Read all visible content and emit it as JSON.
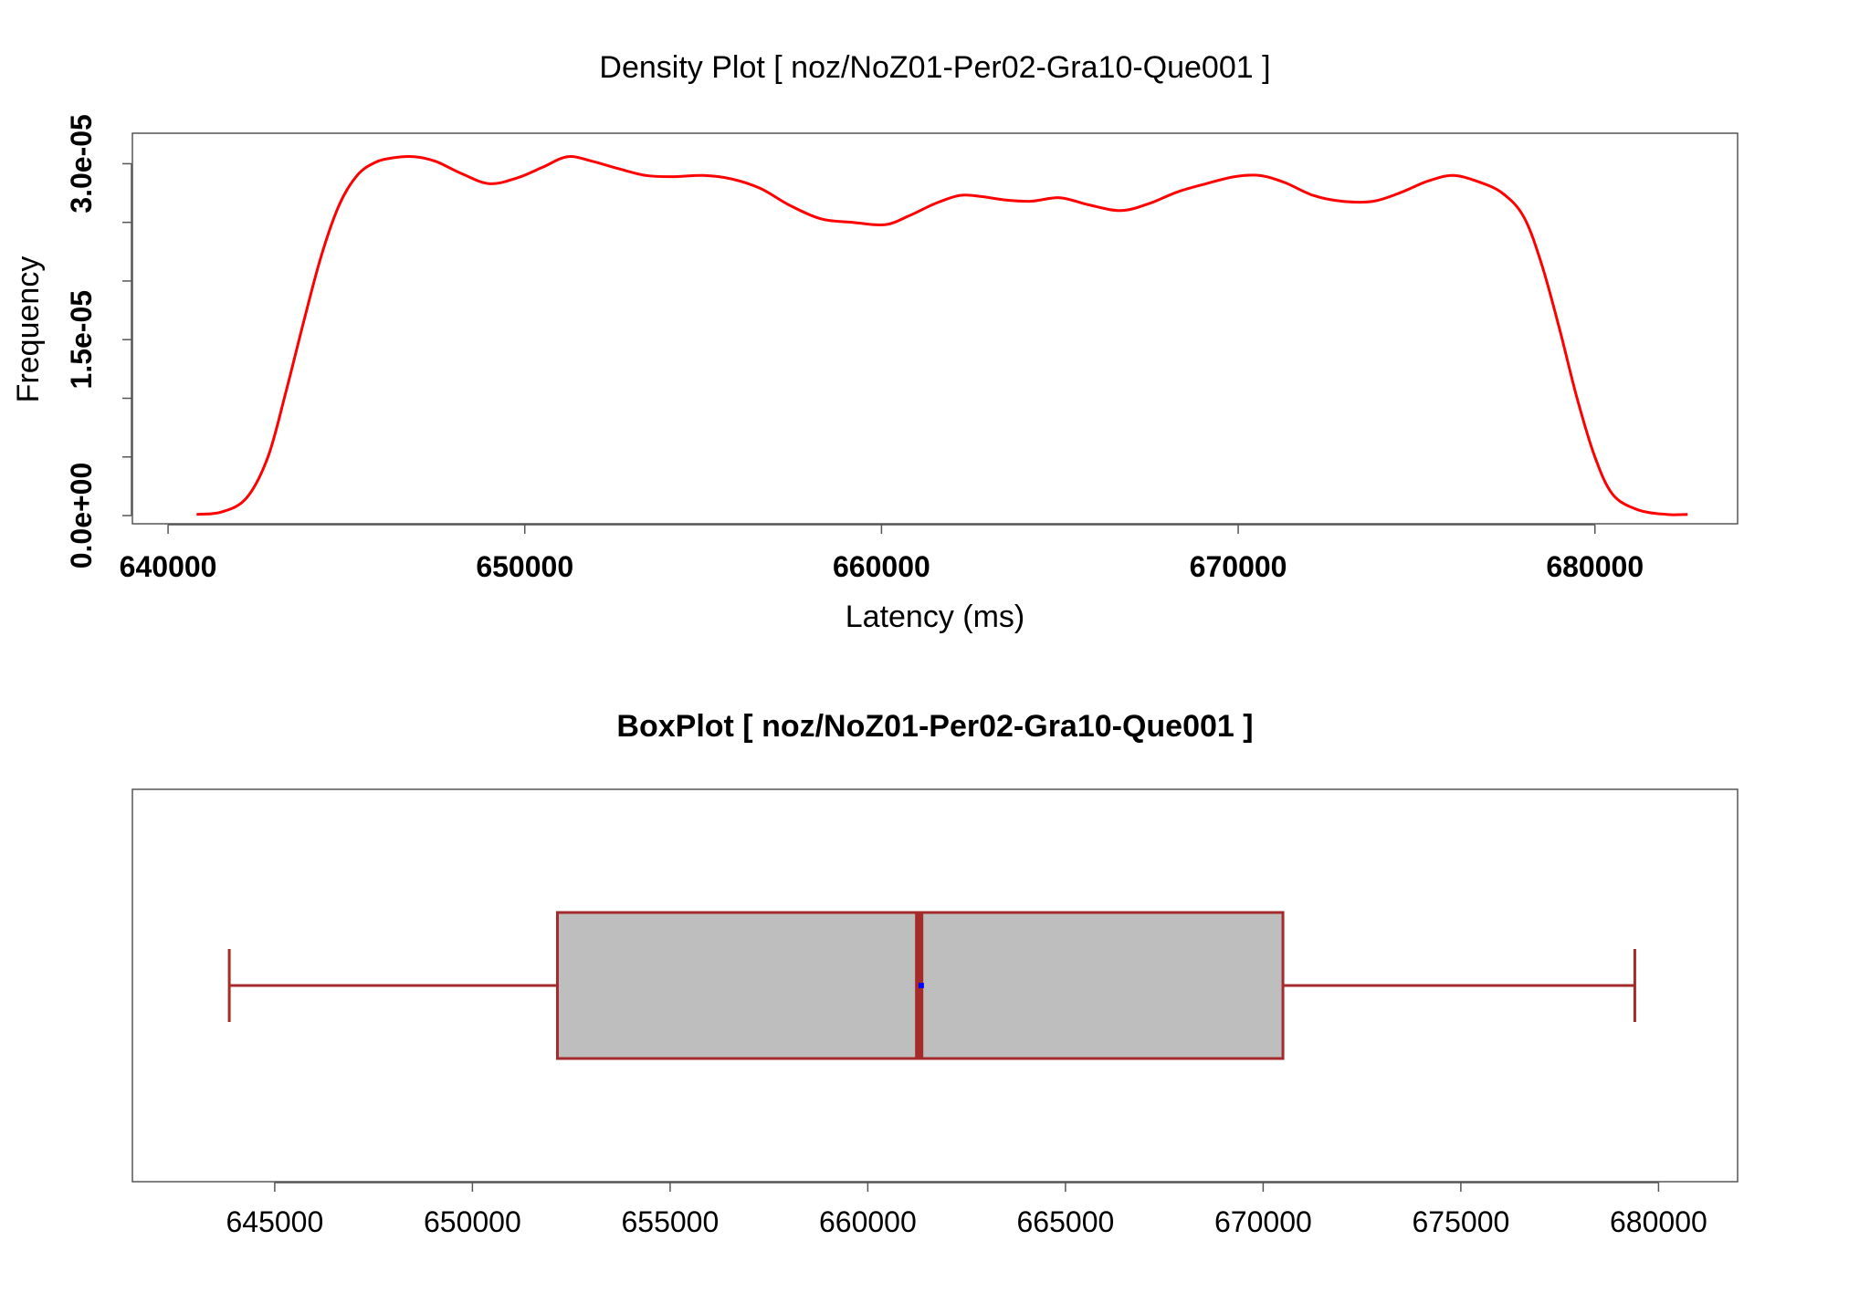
{
  "colors": {
    "density_line": "#ff0000",
    "box_border": "#a52a2a",
    "box_fill": "#bebebe",
    "mean_marker": "#0000ff",
    "frame": "#555555"
  },
  "chart_data": [
    {
      "type": "line",
      "title": "Density Plot [ noz/NoZ01-Per02-Gra10-Que001 ]",
      "xlabel": "Latency (ms)",
      "ylabel": "Frequency",
      "xlim": [
        639000,
        684000
      ],
      "ylim": [
        -7e-07,
        3.26e-05
      ],
      "x_ticks": [
        640000,
        650000,
        660000,
        670000,
        680000
      ],
      "x_tick_labels": [
        "640000",
        "650000",
        "660000",
        "670000",
        "680000"
      ],
      "y_ticks": [
        0,
        5e-06,
        1e-05,
        1.5e-05,
        2e-05,
        2.5e-05,
        3e-05
      ],
      "y_tick_labels": [
        {
          "value": 0,
          "label": "0.0e+00"
        },
        {
          "value": 1.5e-05,
          "label": "1.5e-05"
        },
        {
          "value": 3e-05,
          "label": "3.0e-05"
        }
      ],
      "grid": false,
      "series": [
        {
          "x": [
            640800,
            641500,
            642200,
            642800,
            643300,
            643800,
            644300,
            644800,
            645300,
            645800,
            646300,
            646900,
            647500,
            648200,
            649000,
            649800,
            650500,
            651200,
            651900,
            652600,
            653400,
            654200,
            655000,
            655800,
            656600,
            657400,
            658300,
            659200,
            660100,
            660800,
            661500,
            662200,
            662800,
            663500,
            664200,
            665000,
            665800,
            666700,
            667500,
            668300,
            669100,
            669900,
            670600,
            671300,
            672100,
            672900,
            673800,
            674600,
            675300,
            676000,
            676700,
            677400,
            678000,
            678500,
            679000,
            679500,
            680000,
            680500,
            681200,
            682000,
            682600
          ],
          "y": [
            1e-07,
            3e-07,
            1.5e-06,
            5e-06,
            1.05e-05,
            1.65e-05,
            2.22e-05,
            2.65e-05,
            2.9e-05,
            3.01e-05,
            3.05e-05,
            3.06e-05,
            3.02e-05,
            2.92e-05,
            2.83e-05,
            2.88e-05,
            2.97e-05,
            3.06e-05,
            3.02e-05,
            2.96e-05,
            2.9e-05,
            2.89e-05,
            2.9e-05,
            2.87e-05,
            2.79e-05,
            2.65e-05,
            2.53e-05,
            2.5e-05,
            2.48e-05,
            2.56e-05,
            2.66e-05,
            2.73e-05,
            2.72e-05,
            2.69e-05,
            2.68e-05,
            2.71e-05,
            2.65e-05,
            2.6e-05,
            2.66e-05,
            2.76e-05,
            2.83e-05,
            2.89e-05,
            2.9e-05,
            2.84e-05,
            2.73e-05,
            2.68e-05,
            2.68e-05,
            2.76e-05,
            2.85e-05,
            2.9e-05,
            2.85e-05,
            2.75e-05,
            2.55e-05,
            2.15e-05,
            1.6e-05,
            1e-05,
            5e-06,
            1.8e-06,
            5e-07,
            1e-07,
            1e-07
          ]
        }
      ]
    },
    {
      "type": "box",
      "title": "BoxPlot [ noz/NoZ01-Per02-Gra10-Que001 ]",
      "xlim": [
        641400,
        682000
      ],
      "x_ticks": [
        645000,
        650000,
        655000,
        660000,
        665000,
        670000,
        675000,
        680000
      ],
      "x_tick_labels": [
        "645000",
        "650000",
        "655000",
        "660000",
        "665000",
        "670000",
        "675000",
        "680000"
      ],
      "grid": false,
      "box": {
        "whisker_low": 643850,
        "q1": 652150,
        "median": 661300,
        "mean": 661350,
        "q3": 670500,
        "whisker_high": 679400
      }
    }
  ]
}
